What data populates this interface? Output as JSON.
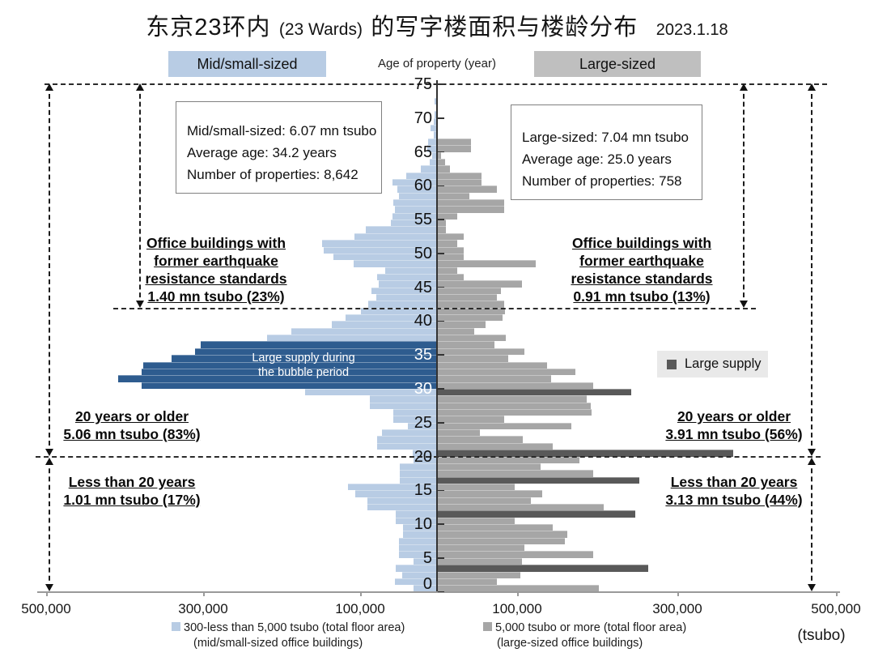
{
  "header": {
    "title_zh1": "东京23环内",
    "title_en": "(23 Wards)",
    "title_zh2": "的写字楼面积与楼龄分布",
    "date": "2023.1.18"
  },
  "legend_top": {
    "left": "Mid/small-sized",
    "center": "Age of property (year)",
    "right": "Large-sized"
  },
  "info_left": {
    "l1": "Mid/small-sized: 6.07 mn tsubo",
    "l2": "Average age: 34.2 years",
    "l3": "Number of properties: 8,642"
  },
  "info_right": {
    "l1": "Large-sized: 7.04 mn tsubo",
    "l2": "Average age: 25.0 years",
    "l3": "Number of properties: 758"
  },
  "quake_left": {
    "l1": "Office buildings with",
    "l2": "former earthquake",
    "l3": "resistance standards",
    "l4": "1.40 mn tsubo (23%)"
  },
  "quake_right": {
    "l1": "Office buildings with",
    "l2": "former earthquake",
    "l3": "resistance standards",
    "l4": "0.91 mn tsubo (13%)"
  },
  "older_left": {
    "l1": "20 years or older",
    "l2": "5.06 mn tsubo (83%)"
  },
  "older_right": {
    "l1": "20 years or older",
    "l2": "3.91 mn tsubo (56%)"
  },
  "newer_left": {
    "l1": "Less than 20 years",
    "l2": "1.01 mn tsubo (17%)"
  },
  "newer_right": {
    "l1": "Less than 20 years",
    "l2": "3.13 mn tsubo (44%)"
  },
  "bubble_label": {
    "l1": "Large supply during",
    "l2": "the bubble period"
  },
  "large_supply": {
    "label": "Large supply"
  },
  "legend_bottom": {
    "left_l1": "300-less than 5,000 tsubo (total floor area)",
    "left_l2": "(mid/small-sized office buildings)",
    "right_l1": "5,000 tsubo or more (total floor area)",
    "right_l2": "(large-sized office buildings)",
    "unit": "(tsubo)"
  },
  "colors": {
    "mid_small": "#b8cce4",
    "mid_small_highlight": "#2e5c8f",
    "large": "#a6a6a6",
    "large_highlight": "#595959",
    "legend_large_box": "#bfbfbf",
    "axis": "#333333"
  },
  "chart_data": {
    "type": "bar",
    "subtype": "population-pyramid",
    "title": "东京23环内 (23 Wards) 的写字楼面积与楼龄分布",
    "date": "2023.1.18",
    "values_unit": "thousand tsubo (index of each value = building age in years, 0-75)",
    "x_axis": {
      "unit": "tsubo",
      "tick_labels": [
        "500,000",
        "300,000",
        "100,000",
        "100,000",
        "300,000",
        "500,000"
      ],
      "range_each_side": [
        0,
        500000
      ]
    },
    "y_axis": {
      "label": "Age of property (year)",
      "ticks": [
        0,
        5,
        10,
        15,
        20,
        25,
        30,
        35,
        40,
        45,
        50,
        55,
        60,
        65,
        70,
        75
      ]
    },
    "reference_lines_age": [
      75,
      41.5,
      20,
      0
    ],
    "series": [
      {
        "name": "Mid/small-sized",
        "side": "left",
        "color": "#b8cce4",
        "highlight_color": "#2e5c8f",
        "highlight_label": "Large supply during the bubble period",
        "highlight_ages": [
          30,
          31,
          32,
          33,
          34,
          35,
          36
        ],
        "total": "6.07 mn tsubo",
        "average_age": 34.2,
        "properties": 8642,
        "values": [
          29,
          53,
          43,
          52,
          29,
          47,
          47,
          47,
          42,
          42,
          52,
          52,
          88,
          88,
          103,
          112,
          46,
          46,
          46,
          29,
          30,
          75,
          75,
          69,
          36,
          55,
          55,
          85,
          85,
          167,
          375,
          405,
          375,
          373,
          337,
          307,
          300,
          215,
          185,
          133,
          115,
          96,
          87,
          76,
          82,
          73,
          75,
          65,
          105,
          131,
          143,
          145,
          104,
          90,
          58,
          56,
          53,
          55,
          47,
          49,
          56,
          38,
          20,
          8,
          5,
          11,
          10,
          3,
          7,
          3,
          2,
          0,
          2,
          0,
          0,
          0
        ]
      },
      {
        "name": "Large-sized",
        "side": "right",
        "color": "#a6a6a6",
        "highlight_color": "#595959",
        "highlight_label": "Large supply",
        "highlight_ages": [
          3,
          11,
          16,
          20,
          29
        ],
        "total": "7.04 mn tsubo",
        "average_age": 25.0,
        "properties": 758,
        "values": [
          205,
          75,
          105,
          268,
          107,
          198,
          110,
          162,
          165,
          146,
          98,
          252,
          211,
          119,
          133,
          98,
          257,
          198,
          131,
          180,
          376,
          146,
          108,
          54,
          170,
          85,
          196,
          195,
          190,
          246,
          198,
          144,
          175,
          139,
          90,
          110,
          72,
          87,
          46,
          61,
          82,
          86,
          85,
          75,
          80,
          107,
          33,
          25,
          125,
          33,
          33,
          25,
          33,
          10,
          10,
          25,
          85,
          85,
          40,
          75,
          56,
          56,
          15,
          9,
          4,
          42,
          42,
          0,
          0,
          0,
          0,
          0,
          0,
          0,
          0,
          0
        ]
      }
    ]
  }
}
